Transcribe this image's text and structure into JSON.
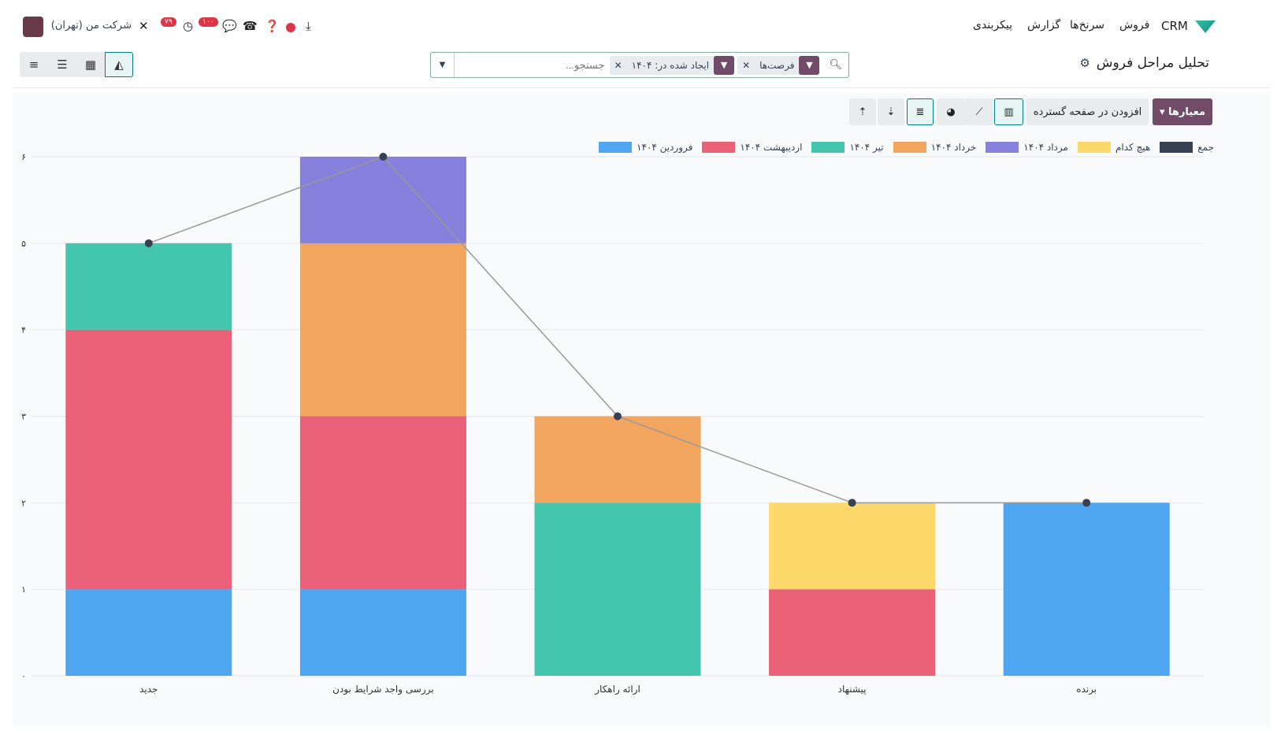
{
  "topbar": {
    "brand": "CRM",
    "menus": [
      "فروش",
      "سرنخ‌ها",
      "گزارش",
      "پیکربندی"
    ],
    "company": "شرکت من (تهران)",
    "activity_count": "۷۹",
    "message_count": "۱۰۰"
  },
  "header": {
    "title": "تحلیل مراحل فروش"
  },
  "search": {
    "facets": [
      {
        "label": "فرصت‌ها"
      },
      {
        "label": "ایجاد شده در: ۱۴۰۴"
      }
    ],
    "placeholder": "جستجو..."
  },
  "toolbar": {
    "measures": "معیارها",
    "insert": "افزودن در صفحه گسترده"
  },
  "chart_data": {
    "type": "bar",
    "stacked": true,
    "categories": [
      "جدید",
      "بررسی واجد شرایط بودن",
      "ارائه راهکار",
      "پیشنهاد",
      "برنده"
    ],
    "series": [
      {
        "name": "فروردین ۱۴۰۴",
        "color": "#4ea5f0",
        "values": [
          1,
          1,
          0,
          0,
          2
        ]
      },
      {
        "name": "اردیبهشت ۱۴۰۴",
        "color": "#eb6278",
        "values": [
          3,
          2,
          0,
          1,
          0
        ]
      },
      {
        "name": "تیر ۱۴۰۴",
        "color": "#43c5ae",
        "values": [
          1,
          0,
          2,
          0,
          0
        ]
      },
      {
        "name": "خرداد ۱۴۰۴",
        "color": "#f2a55f",
        "values": [
          0,
          2,
          1,
          0,
          0
        ]
      },
      {
        "name": "مرداد ۱۴۰۴",
        "color": "#8780dc",
        "values": [
          0,
          1,
          0,
          0,
          0
        ]
      },
      {
        "name": "هیچ کدام",
        "color": "#fdd86a",
        "values": [
          0,
          0,
          0,
          1,
          0
        ]
      }
    ],
    "total": {
      "name": "جمع",
      "color": "#374151",
      "values": [
        5,
        6,
        3,
        2,
        2
      ]
    },
    "yticks": [
      "۰",
      "۱",
      "۲",
      "۳",
      "۴",
      "۵",
      "۶"
    ],
    "ylim": [
      0,
      6
    ],
    "grid": true,
    "legend": "top-right"
  }
}
